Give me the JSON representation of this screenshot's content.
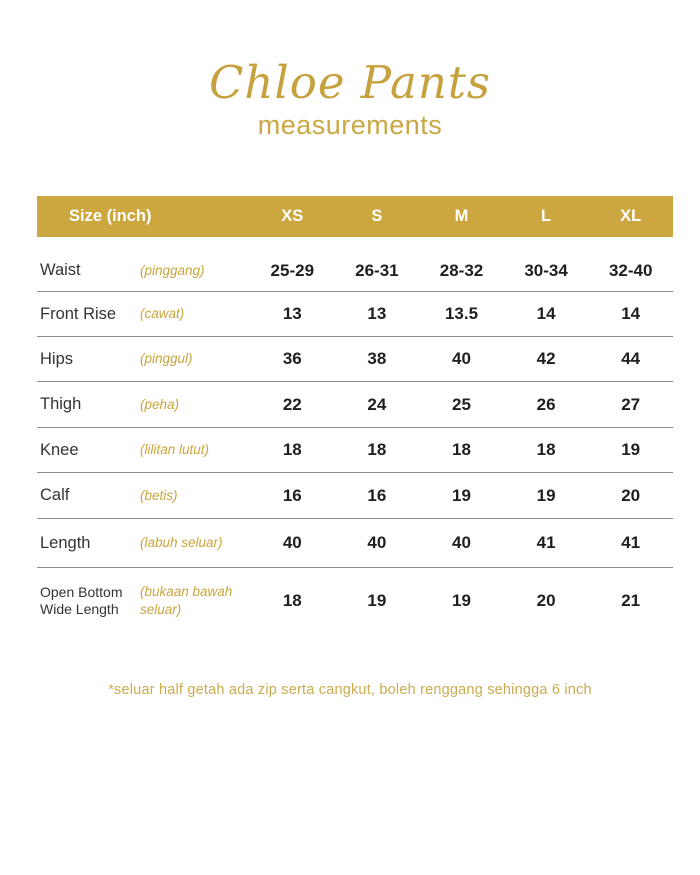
{
  "colors": {
    "header_band": "#cca63e",
    "title_gold": "#c5a23e",
    "malay_gold": "#c9a53c",
    "footnote_gold": "#cbac4e",
    "separator_gray": "#8c8c8c",
    "value_text": "#1f1f1f",
    "header_text": "#ffffff"
  },
  "title": {
    "main": "Chloe Pants",
    "subtitle": "measurements"
  },
  "table": {
    "header": {
      "label": "Size (inch)",
      "sizes": [
        "XS",
        "S",
        "M",
        "L",
        "XL"
      ]
    },
    "rows": [
      {
        "label": "Waist",
        "malay": "(pinggang)",
        "values": [
          "25-29",
          "26-31",
          "28-32",
          "30-34",
          "32-40"
        ]
      },
      {
        "label": "Front Rise",
        "malay": "(cawat)",
        "values": [
          "13",
          "13",
          "13.5",
          "14",
          "14"
        ]
      },
      {
        "label": "Hips",
        "malay": "(pinggul)",
        "values": [
          "36",
          "38",
          "40",
          "42",
          "44"
        ]
      },
      {
        "label": "Thigh",
        "malay": "(peha)",
        "values": [
          "22",
          "24",
          "25",
          "26",
          "27"
        ]
      },
      {
        "label": "Knee",
        "malay": "(lilitan lutut)",
        "values": [
          "18",
          "18",
          "18",
          "18",
          "19"
        ]
      },
      {
        "label": "Calf",
        "malay": "(betis)",
        "values": [
          "16",
          "16",
          "19",
          "19",
          "20"
        ]
      },
      {
        "label": "Length",
        "malay": "(labuh seluar)",
        "values": [
          "40",
          "40",
          "40",
          "41",
          "41"
        ]
      },
      {
        "label": "Open Bottom Wide Length",
        "malay": "(bukaan bawah seluar)",
        "values": [
          "18",
          "19",
          "19",
          "20",
          "21"
        ]
      }
    ]
  },
  "footnote": "*seluar half getah ada zip serta cangkut, boleh renggang sehingga 6 inch"
}
